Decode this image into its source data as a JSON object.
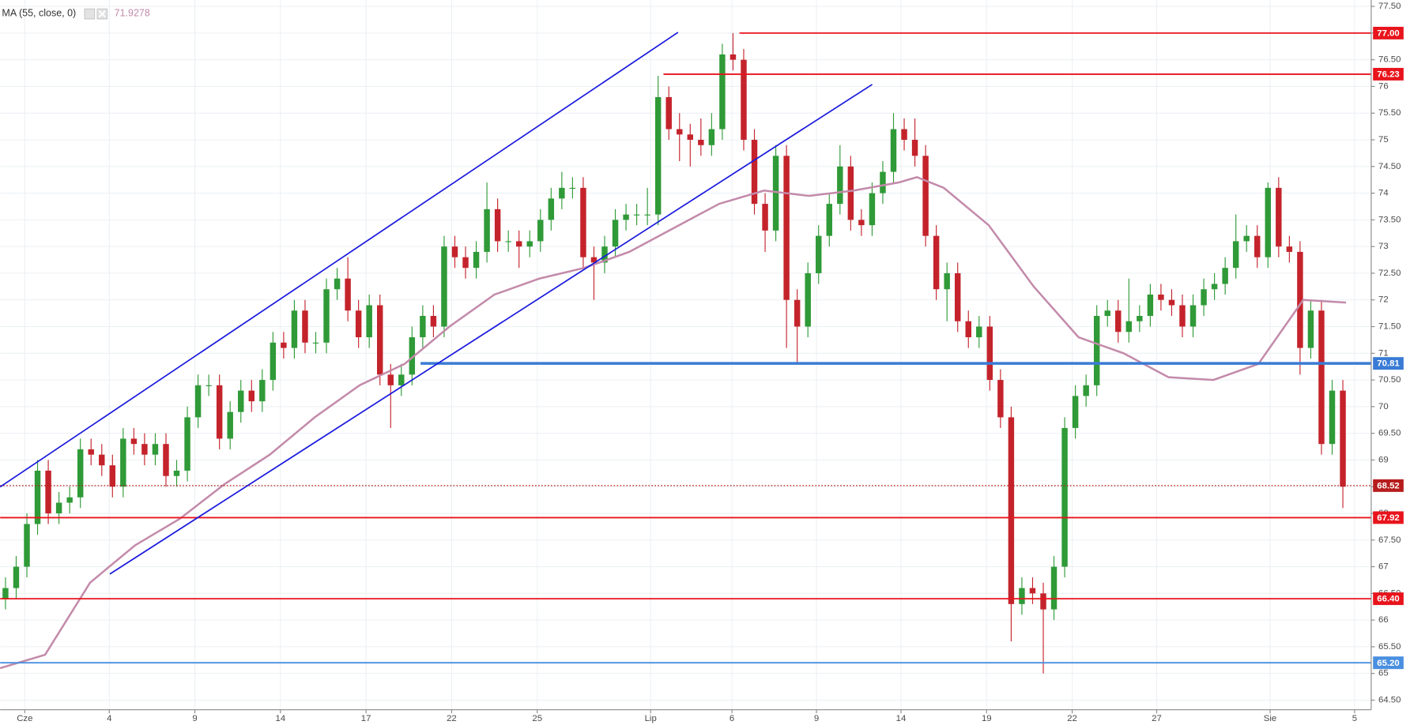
{
  "chart_data": {
    "type": "candlestick",
    "up_color": "#2f9a37",
    "down_color": "#c4232b",
    "grid": true,
    "xlim": [
      -0.5,
      127.65
    ],
    "ylim": [
      64.32,
      77.62
    ],
    "xticks": [
      {
        "value": 1.8,
        "label": "Cze"
      },
      {
        "value": 9.7,
        "label": "4"
      },
      {
        "value": 17.7,
        "label": "9"
      },
      {
        "value": 25.7,
        "label": "14"
      },
      {
        "value": 33.7,
        "label": "17"
      },
      {
        "value": 41.7,
        "label": "22"
      },
      {
        "value": 49.7,
        "label": "25"
      },
      {
        "value": 60.3,
        "label": "Lip"
      },
      {
        "value": 67.9,
        "label": "6"
      },
      {
        "value": 75.8,
        "label": "9"
      },
      {
        "value": 83.7,
        "label": "14"
      },
      {
        "value": 91.7,
        "label": "19"
      },
      {
        "value": 99.7,
        "label": "22"
      },
      {
        "value": 107.6,
        "label": "27"
      },
      {
        "value": 118.2,
        "label": "Sie"
      },
      {
        "value": 126.1,
        "label": "5"
      }
    ],
    "yticks": [
      {
        "value": 64.5,
        "label": "64.50"
      },
      65,
      {
        "value": 65.5,
        "label": "65.50"
      },
      66,
      {
        "value": 66.5,
        "label": "66.50"
      },
      67,
      {
        "value": 67.5,
        "label": "67.50"
      },
      68,
      {
        "value": 68.5,
        "label": "68.50"
      },
      69,
      {
        "value": 69.5,
        "label": "69.50"
      },
      70,
      {
        "value": 70.5,
        "label": "70.50"
      },
      71,
      {
        "value": 71.5,
        "label": "71.50"
      },
      72,
      {
        "value": 72.5,
        "label": "72.50"
      },
      73,
      {
        "value": 73.5,
        "label": "73.50"
      },
      74,
      {
        "value": 74.5,
        "label": "74.50"
      },
      75,
      {
        "value": 75.5,
        "label": "75.50"
      },
      76,
      {
        "value": 76.5,
        "label": "76.50"
      },
      77,
      {
        "value": 77.5,
        "label": "77.50"
      }
    ],
    "yticks_labels_fixed": true,
    "open": [
      66.4,
      66.6,
      67.0,
      67.8,
      68.8,
      68.0,
      68.2,
      68.3,
      69.2,
      69.1,
      68.9,
      68.5,
      69.4,
      69.3,
      69.1,
      69.3,
      68.7,
      68.8,
      69.8,
      70.4,
      70.4,
      69.4,
      69.9,
      70.3,
      70.1,
      70.5,
      71.2,
      71.1,
      71.8,
      71.2,
      71.2,
      72.2,
      72.4,
      71.8,
      71.3,
      71.9,
      70.6,
      70.4,
      70.6,
      71.3,
      71.7,
      71.5,
      73.0,
      72.8,
      72.6,
      72.9,
      73.7,
      73.1,
      73.1,
      73.0,
      73.1,
      73.5,
      73.9,
      74.1,
      74.1,
      72.8,
      72.7,
      73.0,
      73.5,
      73.6,
      73.6,
      73.6,
      75.8,
      75.2,
      75.1,
      75.0,
      74.9,
      75.2,
      76.6,
      76.5,
      75.0,
      73.8,
      73.3,
      74.7,
      72.0,
      71.5,
      72.5,
      73.2,
      73.8,
      74.5,
      73.5,
      73.4,
      74.0,
      74.4,
      75.2,
      75.0,
      74.7,
      73.2,
      72.2,
      72.5,
      71.6,
      71.3,
      71.5,
      70.5,
      69.8,
      66.3,
      66.6,
      66.5,
      66.2,
      67.0,
      69.6,
      70.2,
      70.4,
      71.7,
      71.8,
      71.4,
      71.6,
      71.7,
      72.1,
      72.0,
      71.9,
      71.5,
      71.9,
      72.2,
      72.3,
      72.6,
      73.1,
      73.2,
      72.8,
      74.1,
      73.0,
      72.9,
      71.1,
      71.8,
      69.3,
      70.3
    ],
    "high": [
      66.8,
      67.2,
      68.0,
      69.0,
      69.0,
      68.4,
      68.5,
      69.4,
      69.4,
      69.3,
      69.1,
      69.6,
      69.6,
      69.5,
      69.5,
      69.5,
      69.0,
      70.0,
      70.6,
      70.6,
      70.6,
      70.1,
      70.5,
      70.5,
      70.7,
      71.4,
      71.4,
      72.0,
      72.0,
      71.4,
      72.4,
      72.6,
      72.8,
      72.0,
      72.1,
      72.1,
      70.8,
      70.8,
      71.5,
      71.9,
      71.9,
      73.2,
      73.2,
      73.0,
      73.1,
      74.2,
      73.9,
      73.3,
      73.3,
      73.3,
      73.7,
      74.1,
      74.4,
      74.3,
      74.3,
      73.0,
      73.2,
      73.7,
      73.8,
      73.8,
      74.1,
      76.2,
      76.0,
      75.5,
      75.3,
      75.4,
      75.5,
      76.8,
      77.0,
      76.7,
      75.2,
      74.0,
      74.9,
      74.9,
      72.2,
      72.7,
      73.4,
      74.0,
      74.9,
      74.7,
      73.7,
      74.2,
      74.6,
      75.5,
      75.4,
      75.4,
      74.9,
      73.4,
      72.7,
      72.7,
      71.8,
      71.7,
      71.7,
      70.7,
      70.0,
      66.8,
      66.8,
      66.7,
      67.2,
      69.8,
      70.4,
      70.6,
      71.9,
      72.0,
      72.0,
      72.4,
      71.9,
      72.3,
      72.3,
      72.2,
      72.1,
      72.1,
      72.4,
      72.5,
      72.8,
      73.6,
      73.4,
      73.4,
      74.2,
      74.3,
      73.2,
      73.1,
      72.0,
      72.0,
      70.5,
      70.5
    ],
    "low": [
      66.2,
      66.4,
      66.8,
      67.6,
      67.8,
      67.8,
      68.0,
      68.1,
      68.9,
      68.7,
      68.3,
      68.3,
      69.1,
      68.9,
      68.9,
      68.5,
      68.5,
      68.6,
      69.6,
      70.2,
      69.2,
      69.2,
      69.7,
      69.9,
      69.9,
      70.3,
      70.9,
      70.9,
      71.0,
      71.0,
      71.0,
      72.0,
      71.6,
      71.1,
      71.1,
      70.4,
      69.6,
      70.2,
      70.4,
      71.1,
      71.3,
      71.3,
      72.6,
      72.4,
      72.4,
      72.7,
      72.9,
      72.9,
      72.6,
      72.8,
      72.9,
      73.3,
      73.7,
      73.9,
      72.6,
      72.0,
      72.5,
      72.8,
      73.3,
      73.4,
      73.4,
      73.4,
      75.0,
      74.6,
      74.5,
      74.7,
      74.7,
      75.0,
      76.3,
      74.8,
      73.6,
      72.9,
      73.1,
      71.1,
      70.8,
      71.3,
      72.3,
      73.0,
      73.6,
      73.3,
      73.2,
      73.2,
      73.8,
      74.2,
      74.8,
      74.5,
      73.0,
      72.0,
      71.6,
      71.4,
      71.1,
      71.1,
      70.3,
      69.6,
      65.6,
      66.1,
      66.3,
      65.0,
      66.0,
      66.8,
      69.4,
      70.0,
      70.2,
      71.5,
      71.2,
      71.2,
      71.4,
      71.5,
      71.8,
      71.7,
      71.3,
      71.3,
      71.7,
      72.0,
      72.1,
      72.4,
      72.9,
      72.6,
      72.6,
      72.8,
      72.7,
      70.6,
      70.9,
      69.1,
      69.1,
      68.1
    ],
    "close": [
      66.6,
      67.0,
      67.8,
      68.8,
      68.0,
      68.2,
      68.3,
      69.2,
      69.1,
      68.9,
      68.5,
      69.4,
      69.3,
      69.1,
      69.3,
      68.7,
      68.8,
      69.8,
      70.4,
      70.4,
      69.4,
      69.9,
      70.3,
      70.1,
      70.5,
      71.2,
      71.1,
      71.8,
      71.2,
      71.2,
      72.2,
      72.4,
      71.8,
      71.3,
      71.9,
      70.6,
      70.4,
      70.6,
      71.3,
      71.7,
      71.5,
      73.0,
      72.8,
      72.6,
      72.9,
      73.7,
      73.1,
      73.1,
      73.0,
      73.1,
      73.5,
      73.9,
      74.1,
      74.1,
      72.8,
      72.7,
      73.0,
      73.5,
      73.6,
      73.6,
      73.6,
      75.8,
      75.2,
      75.1,
      75.0,
      74.9,
      75.2,
      76.6,
      76.5,
      75.0,
      73.8,
      73.3,
      74.7,
      72.0,
      71.5,
      72.5,
      73.2,
      73.8,
      74.5,
      73.5,
      73.4,
      74.0,
      74.4,
      75.2,
      75.0,
      74.7,
      73.2,
      72.2,
      72.5,
      71.6,
      71.3,
      71.5,
      70.5,
      69.8,
      66.3,
      66.6,
      66.5,
      66.2,
      67.0,
      69.6,
      70.2,
      70.4,
      71.7,
      71.8,
      71.4,
      71.6,
      71.7,
      72.1,
      72.0,
      71.9,
      71.5,
      71.9,
      72.2,
      72.3,
      72.6,
      73.1,
      73.2,
      72.8,
      74.1,
      73.0,
      72.9,
      71.1,
      71.8,
      69.3,
      70.3,
      68.5
    ],
    "ma": {
      "name": "MA (55, close, 0)",
      "last_value": 71.9278,
      "color": "#c38aaa",
      "x": [
        -0.5,
        3.7,
        7.9,
        12.1,
        16.3,
        20.5,
        24.7,
        28.9,
        33.1,
        37.3,
        41.5,
        45.7,
        49.9,
        54.1,
        58.3,
        62.5,
        66.7,
        70.9,
        75.1,
        79.3,
        83.5,
        85.2,
        87.7,
        91.9,
        96.1,
        100.3,
        104.5,
        108.7,
        112.9,
        117.1,
        121.3,
        125.3
      ],
      "values": [
        65.1,
        65.35,
        66.7,
        67.4,
        67.9,
        68.55,
        69.1,
        69.8,
        70.4,
        70.8,
        71.5,
        72.1,
        72.4,
        72.6,
        72.9,
        73.35,
        73.8,
        74.05,
        73.95,
        74.05,
        74.2,
        74.3,
        74.1,
        73.4,
        72.25,
        71.3,
        71.0,
        70.55,
        70.5,
        70.8,
        72.0,
        71.95
      ]
    },
    "levels": [
      {
        "value": 77.0,
        "label": "77.00",
        "color": "#e8141c",
        "from": 68.6
      },
      {
        "value": 76.23,
        "label": "76.23",
        "color": "#e8141c",
        "from": 61.5
      },
      {
        "value": 70.81,
        "label": "70.81",
        "color": "#3a7bd5",
        "from": 38.8,
        "width": 3
      },
      {
        "value": 68.52,
        "label": "68.52",
        "color": "#b71c1c",
        "dotted": true
      },
      {
        "value": 67.92,
        "label": "67.92",
        "color": "#e8141c"
      },
      {
        "value": 66.4,
        "label": "66.40",
        "color": "#e8141c"
      },
      {
        "value": 65.2,
        "label": "65.20",
        "color": "#4a8fe0"
      }
    ]
  }
}
